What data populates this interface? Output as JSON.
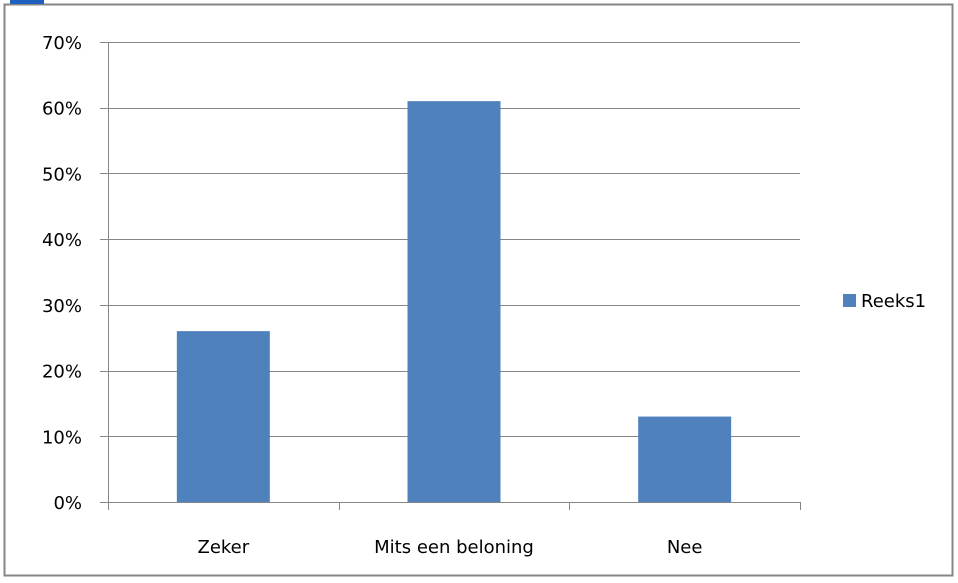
{
  "chart_data": {
    "type": "bar",
    "categories": [
      "Zeker",
      "Mits een beloning",
      "Nee"
    ],
    "series": [
      {
        "name": "Reeks1",
        "values": [
          0.26,
          0.61,
          0.13
        ],
        "color": "#4f81bd"
      }
    ],
    "y_ticks": [
      "0%",
      "10%",
      "20%",
      "30%",
      "40%",
      "50%",
      "60%",
      "70%"
    ],
    "ylim": [
      0,
      0.7
    ],
    "grid": true,
    "legend_position": "right",
    "title": "",
    "xlabel": "",
    "ylabel": ""
  },
  "colors": {
    "frame": "#868686",
    "gridline": "#868686",
    "bar": "#4f81bd",
    "text": "#000000",
    "corner_fragment": "#1f5fbf"
  }
}
